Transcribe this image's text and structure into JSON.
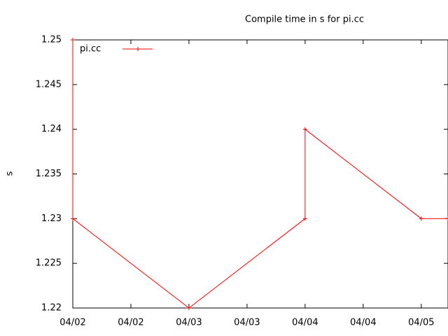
{
  "chart_data": {
    "type": "line",
    "title": "Compile time in s for pi.cc",
    "y_label": "s",
    "x": [
      0,
      0,
      1,
      2,
      2,
      3,
      3.23
    ],
    "series": [
      {
        "name": "pi.cc",
        "color": "#ff0000",
        "values": [
          1.25,
          1.23,
          1.22,
          1.23,
          1.24,
          1.23,
          1.23
        ]
      }
    ],
    "xlim": [
      0,
      3.23
    ],
    "xticks": [
      {
        "value": 0,
        "label": "04/02"
      },
      {
        "value": 0.5,
        "label": "04/02"
      },
      {
        "value": 1,
        "label": "04/03"
      },
      {
        "value": 1.5,
        "label": "04/03"
      },
      {
        "value": 2,
        "label": "04/04"
      },
      {
        "value": 2.5,
        "label": "04/04"
      },
      {
        "value": 3,
        "label": "04/05"
      }
    ],
    "ylim": [
      1.22,
      1.25
    ],
    "yticks": [
      1.22,
      1.225,
      1.23,
      1.235,
      1.24,
      1.245,
      1.25
    ],
    "legend": "top-left",
    "grid": false
  }
}
